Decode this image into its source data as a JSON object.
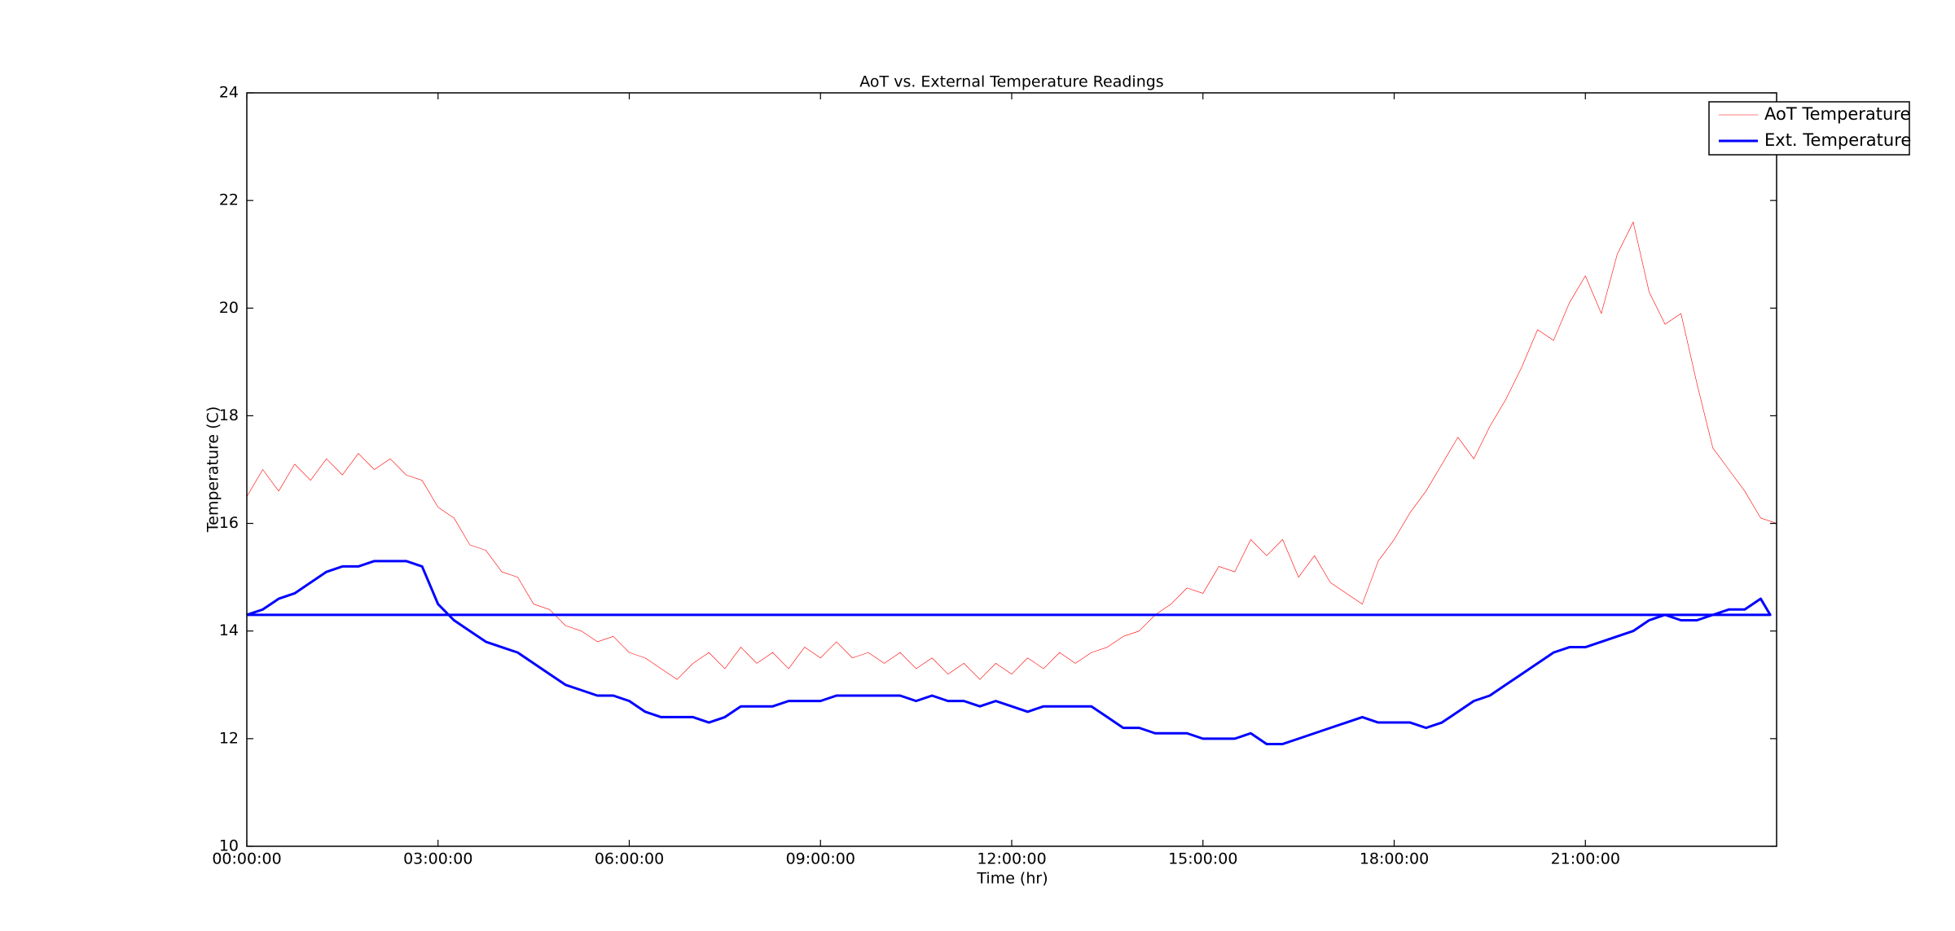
{
  "chart_data": {
    "type": "line",
    "title": "AoT vs. External Temperature Readings",
    "x_label": "Time (hr)",
    "y_label": "Temperature (C)",
    "xlim": [
      0,
      24
    ],
    "ylim": [
      10,
      24
    ],
    "xticks": [
      {
        "value": 0,
        "label": "00:00:00"
      },
      {
        "value": 3,
        "label": "03:00:00"
      },
      {
        "value": 6,
        "label": "06:00:00"
      },
      {
        "value": 9,
        "label": "09:00:00"
      },
      {
        "value": 12,
        "label": "12:00:00"
      },
      {
        "value": 15,
        "label": "15:00:00"
      },
      {
        "value": 18,
        "label": "18:00:00"
      },
      {
        "value": 21,
        "label": "21:00:00"
      }
    ],
    "yticks": [
      10,
      12,
      14,
      16,
      18,
      20,
      22,
      24
    ],
    "legend": "upper right",
    "grid": false,
    "series": [
      {
        "name": "AoT Temperature",
        "color": "#ff0000",
        "line_width": 0.6,
        "x": [
          0,
          0.25,
          0.5,
          0.75,
          1,
          1.25,
          1.5,
          1.75,
          2,
          2.25,
          2.5,
          2.75,
          3,
          3.25,
          3.5,
          3.75,
          4,
          4.25,
          4.5,
          4.75,
          5,
          5.25,
          5.5,
          5.75,
          6,
          6.25,
          6.5,
          6.75,
          7,
          7.25,
          7.5,
          7.75,
          8,
          8.25,
          8.5,
          8.75,
          9,
          9.25,
          9.5,
          9.75,
          10,
          10.25,
          10.5,
          10.75,
          11,
          11.25,
          11.5,
          11.75,
          12,
          12.25,
          12.5,
          12.75,
          13,
          13.25,
          13.5,
          13.75,
          14,
          14.25,
          14.5,
          14.75,
          15,
          15.25,
          15.5,
          15.75,
          16,
          16.25,
          16.5,
          16.75,
          17,
          17.25,
          17.5,
          17.75,
          18,
          18.25,
          18.5,
          18.75,
          19,
          19.25,
          19.5,
          19.75,
          20,
          20.25,
          20.5,
          20.75,
          21,
          21.25,
          21.5,
          21.75,
          22,
          22.25,
          22.5,
          22.75,
          23,
          23.25,
          23.5,
          23.75,
          24
        ],
        "values": [
          16.5,
          17.0,
          16.6,
          17.1,
          16.8,
          17.2,
          16.9,
          17.3,
          17.0,
          17.2,
          16.9,
          16.8,
          16.3,
          16.1,
          15.6,
          15.5,
          15.1,
          15.0,
          14.5,
          14.4,
          14.1,
          14.0,
          13.8,
          13.9,
          13.6,
          13.5,
          13.3,
          13.1,
          13.4,
          13.6,
          13.3,
          13.7,
          13.4,
          13.6,
          13.3,
          13.7,
          13.5,
          13.8,
          13.5,
          13.6,
          13.4,
          13.6,
          13.3,
          13.5,
          13.2,
          13.4,
          13.1,
          13.4,
          13.2,
          13.5,
          13.3,
          13.6,
          13.4,
          13.6,
          13.7,
          13.9,
          14.0,
          14.3,
          14.5,
          14.8,
          14.7,
          15.2,
          15.1,
          15.7,
          15.4,
          15.7,
          15.0,
          15.4,
          14.9,
          14.7,
          14.5,
          15.3,
          15.7,
          16.2,
          16.6,
          17.1,
          17.6,
          17.2,
          17.8,
          18.3,
          18.9,
          19.6,
          19.4,
          20.1,
          20.6,
          19.9,
          21.0,
          21.6,
          20.3,
          19.7,
          19.9,
          18.6,
          17.4,
          17.0,
          16.6,
          16.1,
          16.0
        ]
      },
      {
        "name": "Ext. Temperature",
        "color": "#0000ff",
        "line_width": 3,
        "x": [
          0,
          0.25,
          0.5,
          0.75,
          1,
          1.25,
          1.5,
          1.75,
          2,
          2.25,
          2.5,
          2.75,
          3,
          3.25,
          3.5,
          3.75,
          4,
          4.25,
          4.5,
          4.75,
          5,
          5.25,
          5.5,
          5.75,
          6,
          6.25,
          6.5,
          6.75,
          7,
          7.25,
          7.5,
          7.75,
          8,
          8.25,
          8.5,
          8.75,
          9,
          9.25,
          9.5,
          9.75,
          10,
          10.25,
          10.5,
          10.75,
          11,
          11.25,
          11.5,
          11.75,
          12,
          12.25,
          12.5,
          12.75,
          13,
          13.25,
          13.5,
          13.75,
          14,
          14.25,
          14.5,
          14.75,
          15,
          15.25,
          15.5,
          15.75,
          16,
          16.25,
          16.5,
          16.75,
          17,
          17.25,
          17.5,
          17.75,
          18,
          18.25,
          18.5,
          18.75,
          19,
          19.25,
          19.5,
          19.75,
          20,
          20.25,
          20.5,
          20.75,
          21,
          21.25,
          21.5,
          21.75,
          22,
          22.25,
          22.5,
          22.75,
          23,
          23.25,
          23.5,
          23.75,
          23.9,
          0
        ],
        "values": [
          14.3,
          14.4,
          14.6,
          14.7,
          14.9,
          15.1,
          15.2,
          15.2,
          15.3,
          15.3,
          15.3,
          15.2,
          14.5,
          14.2,
          14.0,
          13.8,
          13.7,
          13.6,
          13.4,
          13.2,
          13.0,
          12.9,
          12.8,
          12.8,
          12.7,
          12.5,
          12.4,
          12.4,
          12.4,
          12.3,
          12.4,
          12.6,
          12.6,
          12.6,
          12.7,
          12.7,
          12.7,
          12.8,
          12.8,
          12.8,
          12.8,
          12.8,
          12.7,
          12.8,
          12.7,
          12.7,
          12.6,
          12.7,
          12.6,
          12.5,
          12.6,
          12.6,
          12.6,
          12.6,
          12.4,
          12.2,
          12.2,
          12.1,
          12.1,
          12.1,
          12.0,
          12.0,
          12.0,
          12.1,
          11.9,
          11.9,
          12.0,
          12.1,
          12.2,
          12.3,
          12.4,
          12.3,
          12.3,
          12.3,
          12.2,
          12.3,
          12.5,
          12.7,
          12.8,
          13.0,
          13.2,
          13.4,
          13.6,
          13.7,
          13.7,
          13.8,
          13.9,
          14.0,
          14.2,
          14.3,
          14.2,
          14.2,
          14.3,
          14.4,
          14.4,
          14.6,
          14.3,
          14.3
        ]
      }
    ]
  }
}
